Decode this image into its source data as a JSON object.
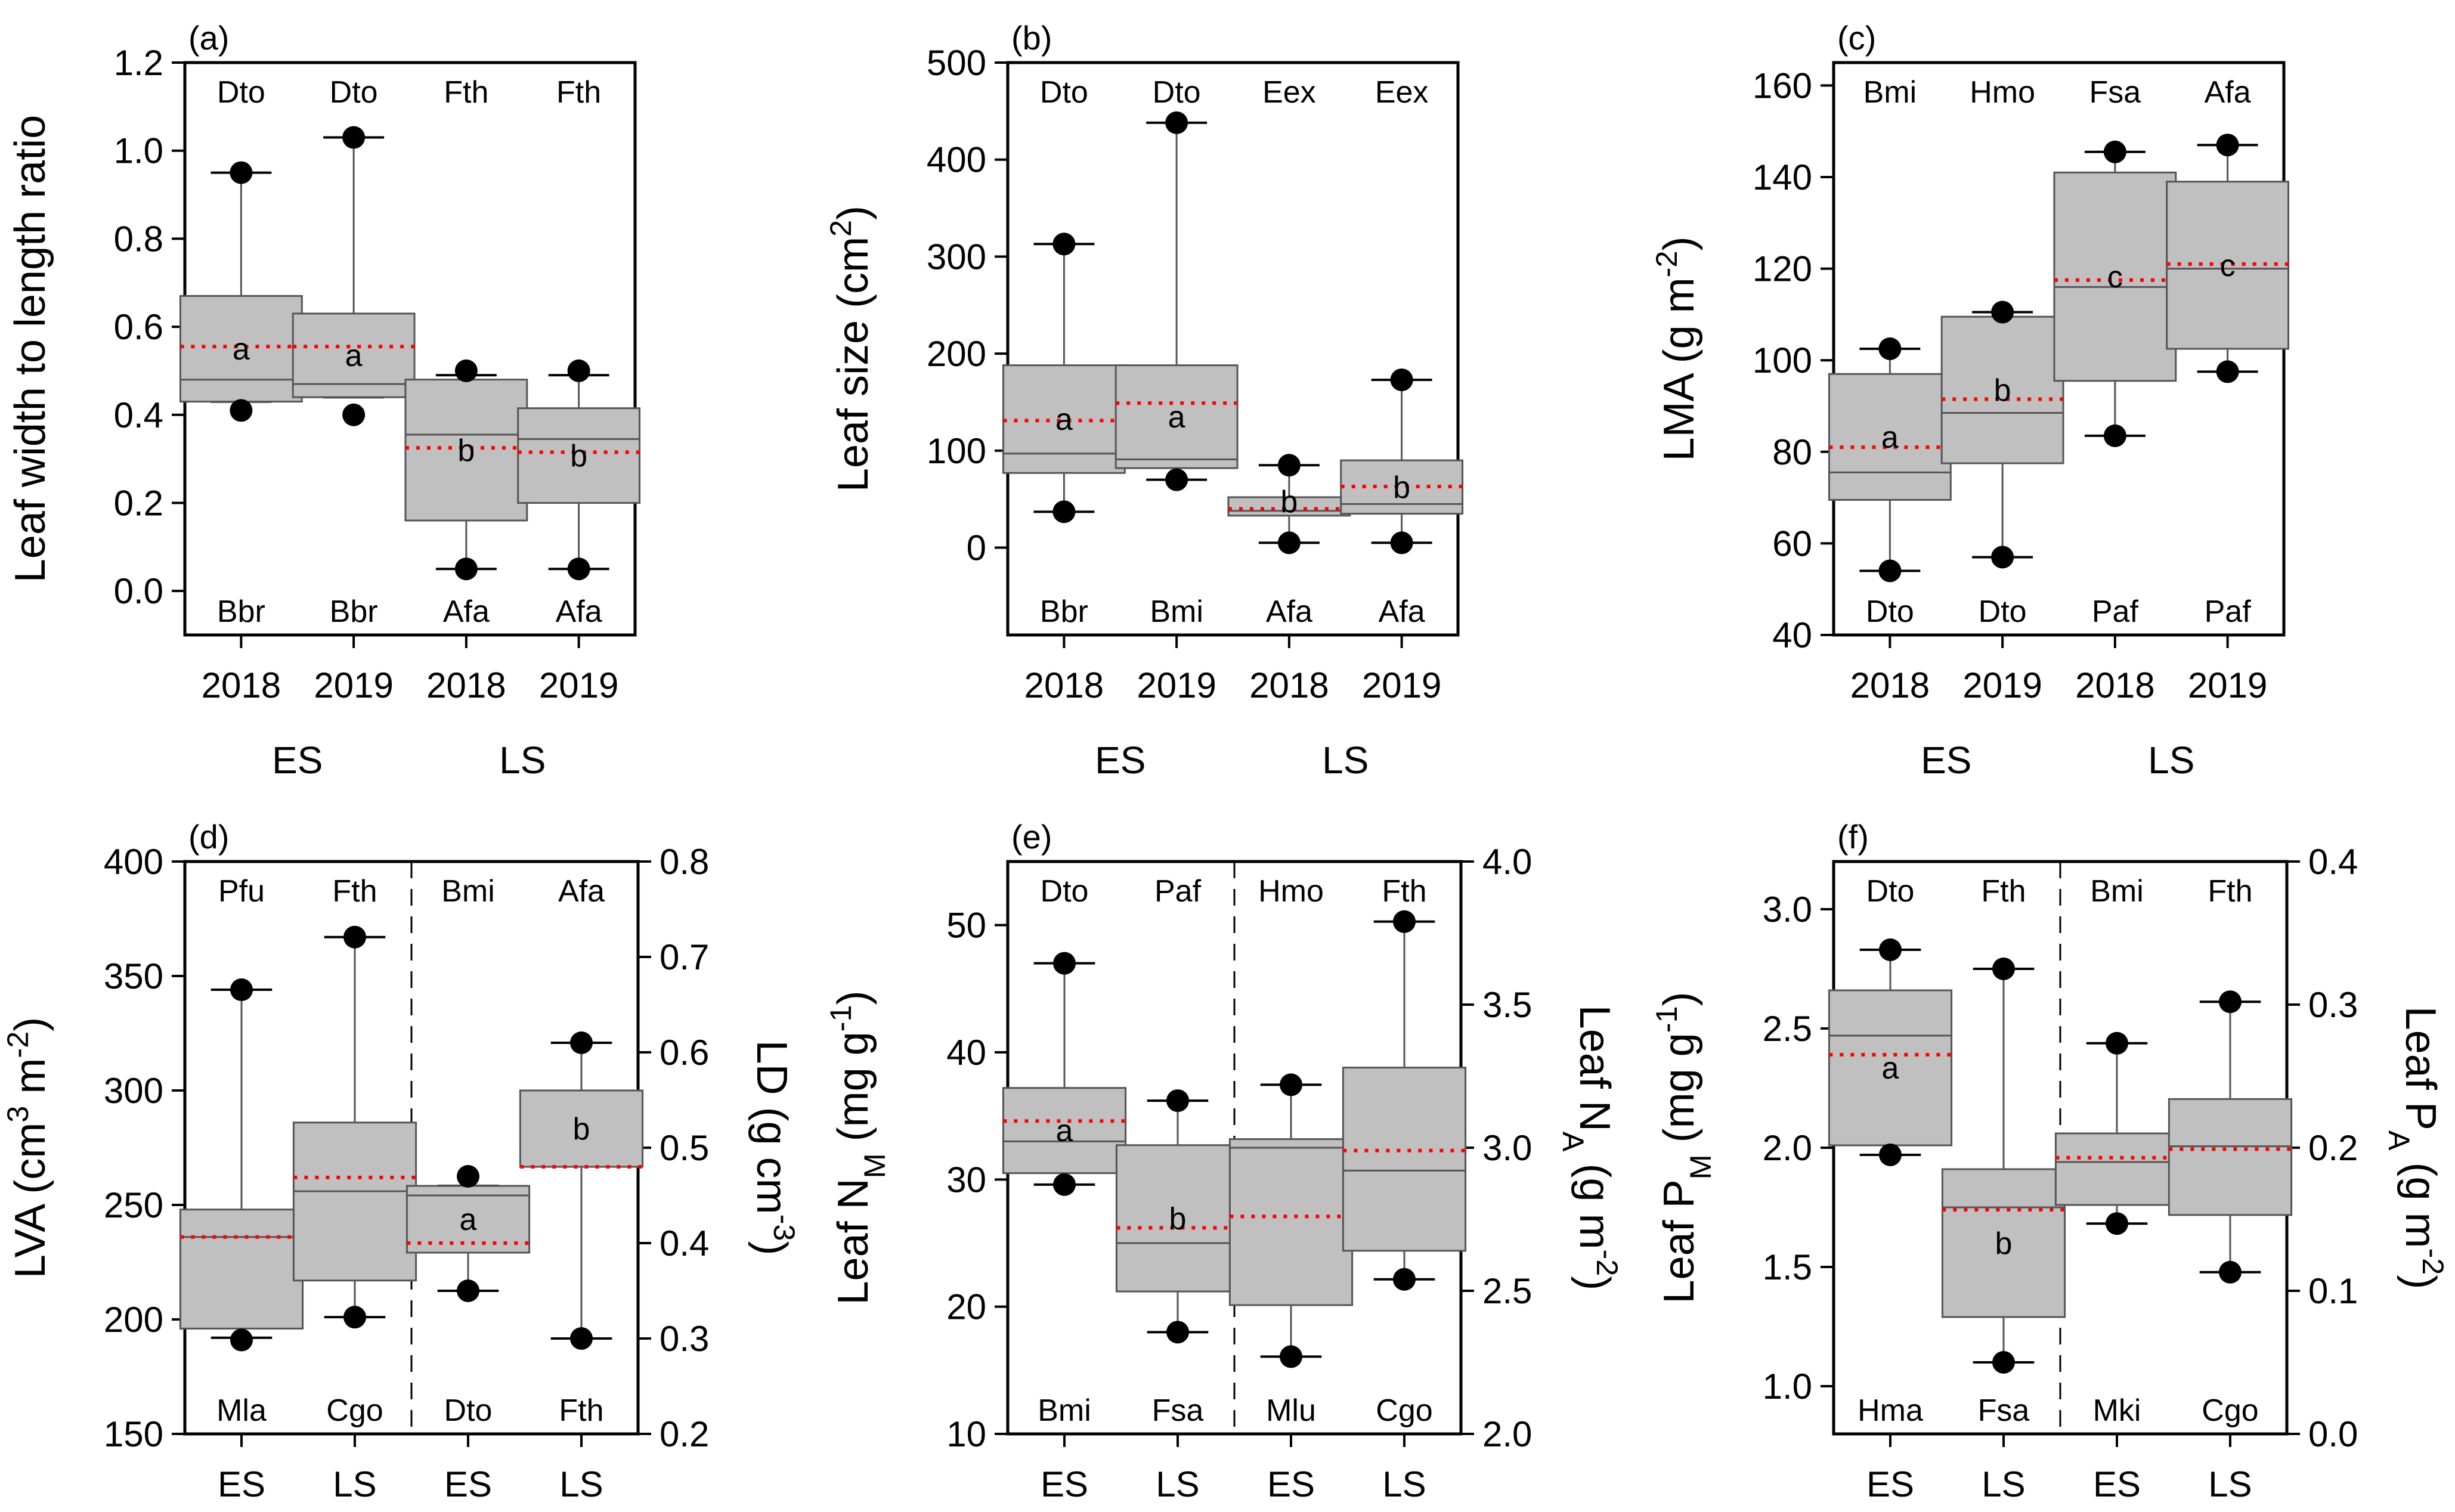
{
  "chart_data": [
    {
      "type": "box",
      "panel_label": "(a)",
      "ylabel": "Leaf width to length ratio",
      "ylim": [
        -0.1,
        1.2
      ],
      "yticks": [
        "0.0",
        "0.2",
        "0.4",
        "0.6",
        "0.8",
        "1.0",
        "1.2"
      ],
      "categories": [
        "2018",
        "2019",
        "2018",
        "2019"
      ],
      "groups": [
        {
          "label": "ES",
          "span": [
            0,
            1
          ]
        },
        {
          "label": "LS",
          "span": [
            2,
            3
          ]
        }
      ],
      "boxes": [
        {
          "q1": 0.43,
          "median": 0.48,
          "q3": 0.67,
          "mean": 0.555,
          "whisker_low": 0.43,
          "whisker_high": 0.95,
          "outlier_low": 0.41,
          "outlier_high": 0.95,
          "top_label": "Dto",
          "bottom_label": "Bbr",
          "letter": "a"
        },
        {
          "q1": 0.44,
          "median": 0.47,
          "q3": 0.63,
          "mean": 0.555,
          "whisker_low": 0.44,
          "whisker_high": 1.03,
          "outlier_low": 0.4,
          "outlier_high": 1.03,
          "top_label": "Dto",
          "bottom_label": "Bbr",
          "letter": "a"
        },
        {
          "q1": 0.16,
          "median": 0.355,
          "q3": 0.48,
          "mean": 0.325,
          "whisker_low": 0.05,
          "whisker_high": 0.49,
          "outlier_low": 0.05,
          "outlier_high": 0.5,
          "top_label": "Fth",
          "bottom_label": "Afa",
          "letter": "b"
        },
        {
          "q1": 0.2,
          "median": 0.345,
          "q3": 0.415,
          "mean": 0.315,
          "whisker_low": 0.05,
          "whisker_high": 0.49,
          "outlier_low": 0.05,
          "outlier_high": 0.5,
          "top_label": "Fth",
          "bottom_label": "Afa",
          "letter": "b"
        }
      ]
    },
    {
      "type": "box",
      "panel_label": "(b)",
      "ylabel": "Leaf size (cm²)",
      "ylim": [
        -90,
        500
      ],
      "yticks": [
        "0",
        "100",
        "200",
        "300",
        "400",
        "500"
      ],
      "categories": [
        "2018",
        "2019",
        "2018",
        "2019"
      ],
      "groups": [
        {
          "label": "ES",
          "span": [
            0,
            1
          ]
        },
        {
          "label": "LS",
          "span": [
            2,
            3
          ]
        }
      ],
      "boxes": [
        {
          "q1": 77,
          "median": 97,
          "q3": 188,
          "mean": 131,
          "whisker_low": 37,
          "whisker_high": 313,
          "outlier_low": 37,
          "outlier_high": 313,
          "top_label": "Dto",
          "bottom_label": "Bbr",
          "letter": "a"
        },
        {
          "q1": 82,
          "median": 91,
          "q3": 188,
          "mean": 149,
          "whisker_low": 70,
          "whisker_high": 438,
          "outlier_low": 70,
          "outlier_high": 438,
          "top_label": "Dto",
          "bottom_label": "Bmi",
          "letter": "a"
        },
        {
          "q1": 33,
          "median": 38,
          "q3": 52,
          "mean": 40,
          "whisker_low": 5,
          "whisker_high": 85,
          "outlier_low": 5,
          "outlier_high": 85,
          "top_label": "Eex",
          "bottom_label": "Afa",
          "letter": "b"
        },
        {
          "q1": 35,
          "median": 45,
          "q3": 90,
          "mean": 63,
          "whisker_low": 5,
          "whisker_high": 173,
          "outlier_low": 5,
          "outlier_high": 173,
          "top_label": "Eex",
          "bottom_label": "Afa",
          "letter": "b"
        }
      ]
    },
    {
      "type": "box",
      "panel_label": "(c)",
      "ylabel": "LMA (g m⁻²)",
      "ylim": [
        40,
        165
      ],
      "yticks": [
        "40",
        "60",
        "80",
        "100",
        "120",
        "140",
        "160"
      ],
      "categories": [
        "2018",
        "2019",
        "2018",
        "2019"
      ],
      "groups": [
        {
          "label": "ES",
          "span": [
            0,
            1
          ]
        },
        {
          "label": "LS",
          "span": [
            2,
            3
          ]
        }
      ],
      "boxes": [
        {
          "q1": 69.5,
          "median": 75.5,
          "q3": 97,
          "mean": 81,
          "whisker_low": 54,
          "whisker_high": 102.5,
          "outlier_low": 54,
          "outlier_high": 102.5,
          "top_label": "Bmi",
          "bottom_label": "Dto",
          "letter": "a"
        },
        {
          "q1": 77.5,
          "median": 88.5,
          "q3": 109.5,
          "mean": 91.5,
          "whisker_low": 57,
          "whisker_high": 110.5,
          "outlier_low": 57,
          "outlier_high": 110.5,
          "top_label": "Hmo",
          "bottom_label": "Dto",
          "letter": "b"
        },
        {
          "q1": 95.5,
          "median": 116,
          "q3": 141,
          "mean": 117.5,
          "whisker_low": 83.5,
          "whisker_high": 145.5,
          "outlier_low": 83.5,
          "outlier_high": 145.5,
          "top_label": "Fsa",
          "bottom_label": "Paf",
          "letter": "c"
        },
        {
          "q1": 102.5,
          "median": 120,
          "q3": 139,
          "mean": 121,
          "whisker_low": 97.5,
          "whisker_high": 147,
          "outlier_low": 97.5,
          "outlier_high": 147,
          "top_label": "Afa",
          "bottom_label": "Paf",
          "letter": "c"
        }
      ]
    },
    {
      "type": "box",
      "panel_label": "(d)",
      "ylabel": "LVA (cm³ m⁻²)",
      "ylabel_right": "LD (g cm⁻³)",
      "ylim": [
        150,
        400
      ],
      "yticks": [
        "150",
        "200",
        "250",
        "300",
        "350",
        "400"
      ],
      "ylim_right": [
        0.2,
        0.8
      ],
      "yticks_right": [
        "0.2",
        "0.3",
        "0.4",
        "0.5",
        "0.6",
        "0.7",
        "0.8"
      ],
      "categories": [
        "ES",
        "LS",
        "ES",
        "LS"
      ],
      "divider_after": 1,
      "boxes": [
        {
          "axis": "left",
          "q1": 196,
          "median": 236,
          "q3": 248,
          "mean": 236,
          "whisker_low": 192,
          "whisker_high": 344,
          "outlier_low": 191,
          "outlier_high": 344,
          "top_label": "Pfu",
          "bottom_label": "Mla",
          "letter": ""
        },
        {
          "axis": "left",
          "q1": 217,
          "median": 256,
          "q3": 286,
          "mean": 262,
          "whisker_low": 201,
          "whisker_high": 367,
          "outlier_low": 201,
          "outlier_high": 367,
          "top_label": "Fth",
          "bottom_label": "Cgo",
          "letter": ""
        },
        {
          "axis": "right",
          "q1": 0.39,
          "median": 0.45,
          "q3": 0.46,
          "mean": 0.4,
          "whisker_low": 0.35,
          "whisker_high": 0.46,
          "outlier_low": 0.35,
          "outlier_high": 0.47,
          "top_label": "Bmi",
          "bottom_label": "Dto",
          "letter": "a"
        },
        {
          "axis": "right",
          "q1": 0.48,
          "median": 0.48,
          "q3": 0.56,
          "mean": 0.48,
          "whisker_low": 0.3,
          "whisker_high": 0.61,
          "outlier_low": 0.3,
          "outlier_high": 0.61,
          "top_label": "Afa",
          "bottom_label": "Fth",
          "letter": "b"
        }
      ]
    },
    {
      "type": "box",
      "panel_label": "(e)",
      "ylabel": "Leaf N_M (mg g⁻¹)",
      "ylabel_right": "Leaf N_A (g m⁻²)",
      "ylim": [
        10,
        55
      ],
      "yticks": [
        "10",
        "20",
        "30",
        "40",
        "50"
      ],
      "ylim_right": [
        2.0,
        4.0
      ],
      "yticks_right": [
        "2.0",
        "2.5",
        "3.0",
        "3.5",
        "4.0"
      ],
      "categories": [
        "ES",
        "LS",
        "ES",
        "LS"
      ],
      "divider_after": 1,
      "boxes": [
        {
          "axis": "left",
          "q1": 30.5,
          "median": 33,
          "q3": 37.2,
          "mean": 34.6,
          "whisker_low": 29.6,
          "whisker_high": 47,
          "outlier_low": 29.6,
          "outlier_high": 47,
          "top_label": "Dto",
          "bottom_label": "Bmi",
          "letter": "a"
        },
        {
          "axis": "left",
          "q1": 21.2,
          "median": 25,
          "q3": 32.7,
          "mean": 26.2,
          "whisker_low": 18,
          "whisker_high": 36.2,
          "outlier_low": 18,
          "outlier_high": 36.2,
          "top_label": "Paf",
          "bottom_label": "Fsa",
          "letter": "b"
        },
        {
          "axis": "right",
          "q1": 2.45,
          "median": 3.0,
          "q3": 3.03,
          "mean": 2.76,
          "whisker_low": 2.27,
          "whisker_high": 3.22,
          "outlier_low": 2.27,
          "outlier_high": 3.22,
          "top_label": "Hmo",
          "bottom_label": "Mlu",
          "letter": ""
        },
        {
          "axis": "right",
          "q1": 2.64,
          "median": 2.92,
          "q3": 3.28,
          "mean": 2.99,
          "whisker_low": 2.54,
          "whisker_high": 3.79,
          "outlier_low": 2.54,
          "outlier_high": 3.79,
          "top_label": "Fth",
          "bottom_label": "Cgo",
          "letter": ""
        }
      ]
    },
    {
      "type": "box",
      "panel_label": "(f)",
      "ylabel": "Leaf P_M (mg g⁻¹)",
      "ylabel_right": "Leaf P_A (g m⁻²)",
      "ylim": [
        0.8,
        3.2
      ],
      "yticks": [
        "1.0",
        "1.5",
        "2.0",
        "2.5",
        "3.0"
      ],
      "ylim_right": [
        0.0,
        0.4
      ],
      "yticks_right": [
        "0.0",
        "0.1",
        "0.2",
        "0.3",
        "0.4"
      ],
      "categories": [
        "ES",
        "LS",
        "ES",
        "LS"
      ],
      "divider_after": 1,
      "boxes": [
        {
          "axis": "left",
          "q1": 2.01,
          "median": 2.47,
          "q3": 2.66,
          "mean": 2.39,
          "whisker_low": 1.97,
          "whisker_high": 2.83,
          "outlier_low": 1.97,
          "outlier_high": 2.83,
          "top_label": "Dto",
          "bottom_label": "Hma",
          "letter": "a"
        },
        {
          "axis": "left",
          "q1": 1.29,
          "median": 1.75,
          "q3": 1.91,
          "mean": 1.74,
          "whisker_low": 1.1,
          "whisker_high": 2.75,
          "outlier_low": 1.1,
          "outlier_high": 2.75,
          "top_label": "Fth",
          "bottom_label": "Fsa",
          "letter": "b"
        },
        {
          "axis": "right",
          "q1": 0.16,
          "median": 0.19,
          "q3": 0.21,
          "mean": 0.193,
          "whisker_low": 0.147,
          "whisker_high": 0.273,
          "outlier_low": 0.147,
          "outlier_high": 0.273,
          "top_label": "Bmi",
          "bottom_label": "Mki",
          "letter": ""
        },
        {
          "axis": "right",
          "q1": 0.153,
          "median": 0.201,
          "q3": 0.234,
          "mean": 0.199,
          "whisker_low": 0.113,
          "whisker_high": 0.302,
          "outlier_low": 0.113,
          "outlier_high": 0.302,
          "top_label": "Fth",
          "bottom_label": "Cgo",
          "letter": ""
        }
      ]
    }
  ]
}
